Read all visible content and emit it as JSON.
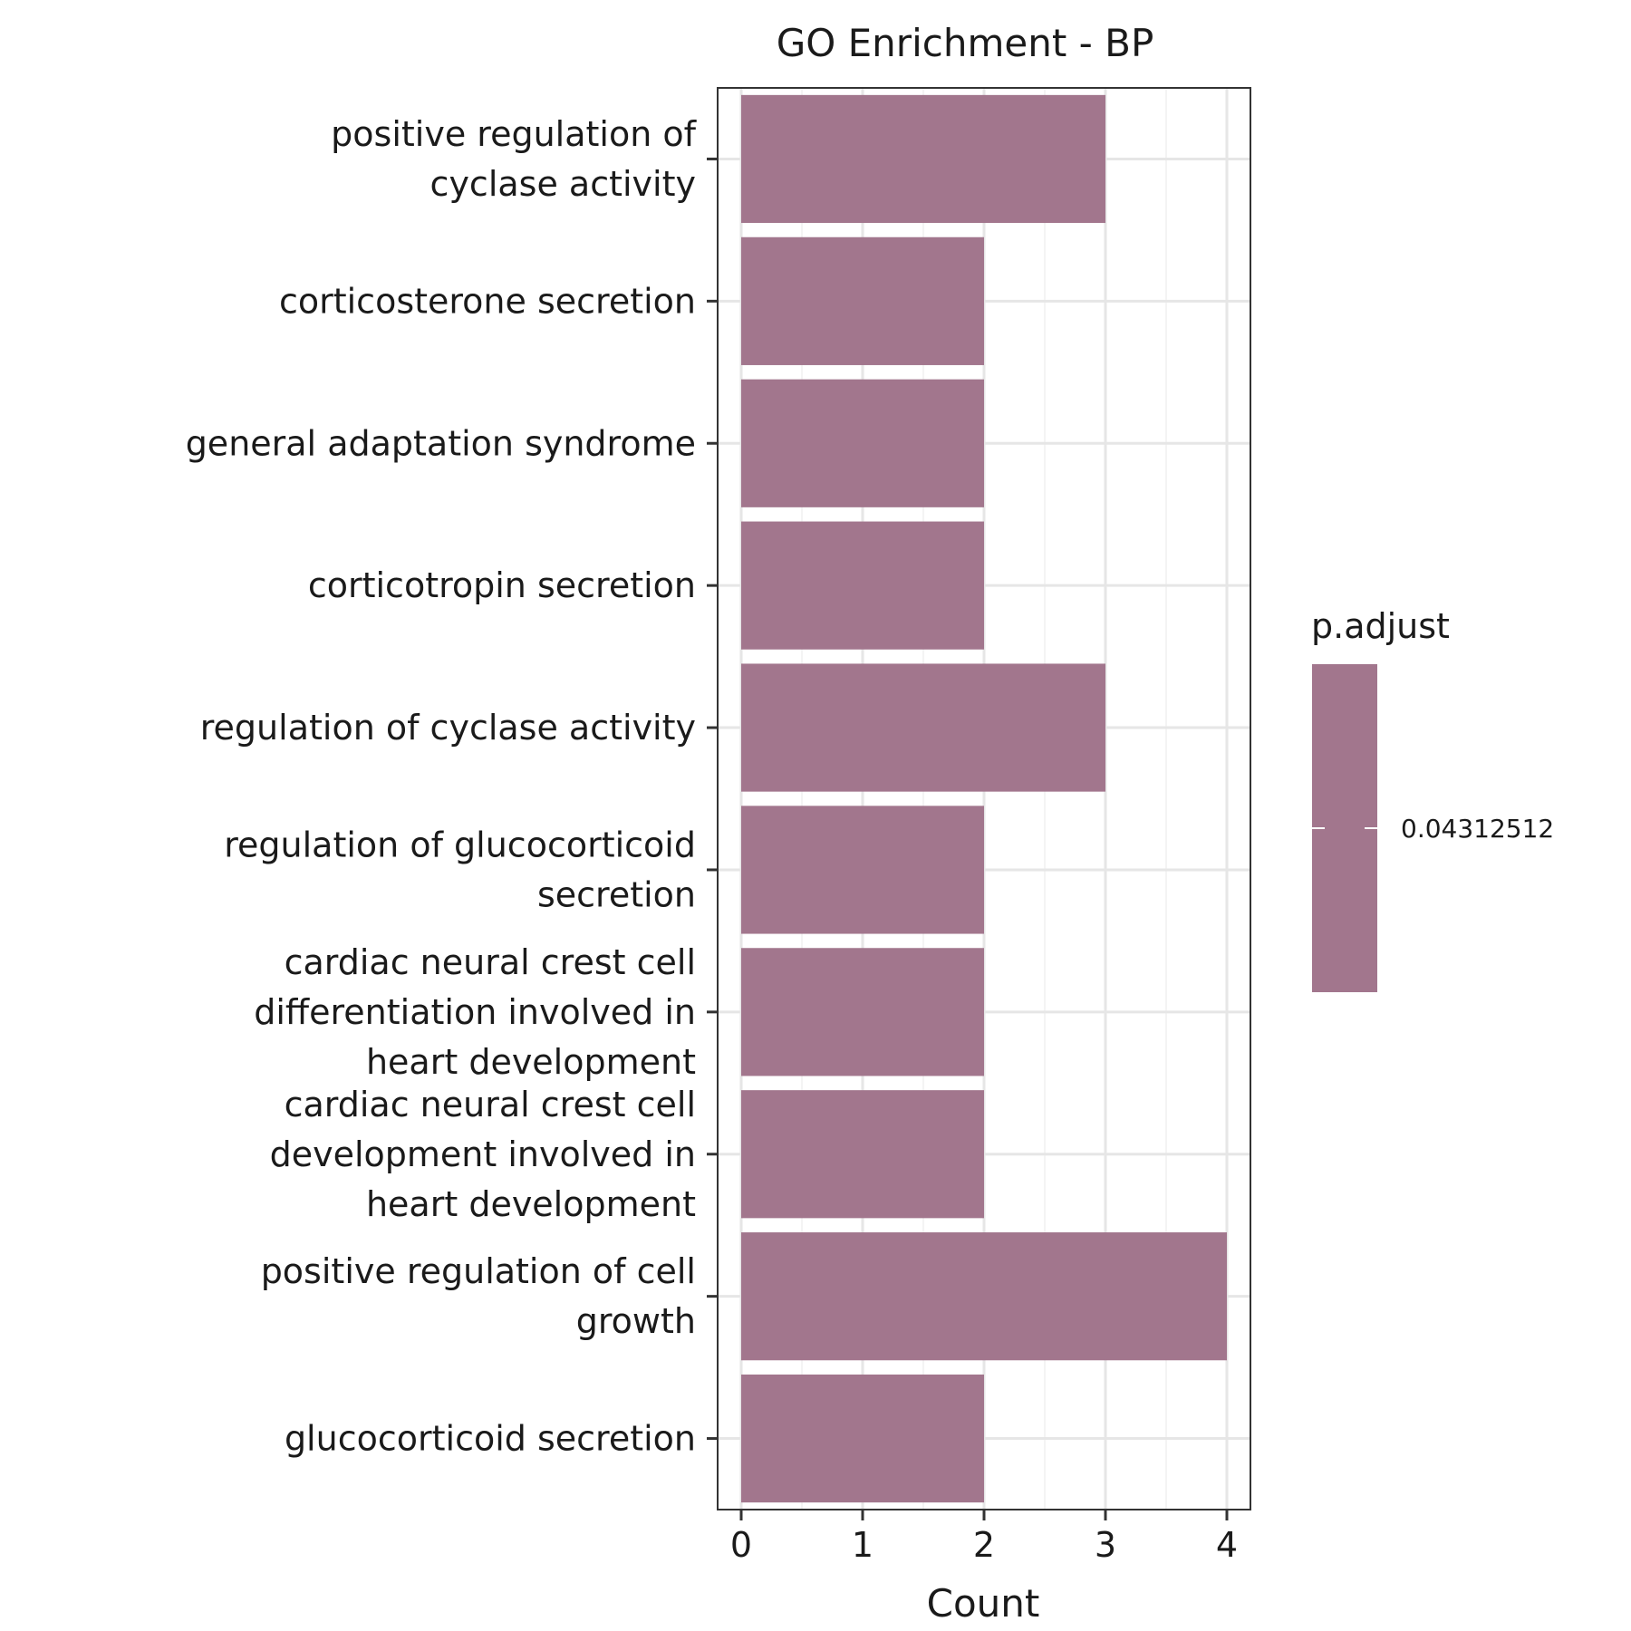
{
  "chart_data": {
    "type": "bar",
    "orientation": "horizontal",
    "title": "GO Enrichment - BP",
    "xlabel": "Count",
    "ylabel": "",
    "xlim": [
      0,
      4
    ],
    "x_ticks": [
      0,
      1,
      2,
      3,
      4
    ],
    "grid": true,
    "categories": [
      [
        "positive regulation of",
        "cyclase activity"
      ],
      [
        "corticosterone secretion"
      ],
      [
        "general adaptation syndrome"
      ],
      [
        "corticotropin secretion"
      ],
      [
        "regulation of cyclase activity"
      ],
      [
        "regulation of glucocorticoid",
        "secretion"
      ],
      [
        "cardiac neural crest cell",
        "differentiation involved in",
        "heart development"
      ],
      [
        "cardiac neural crest cell",
        "development involved in",
        "heart development"
      ],
      [
        "positive regulation of cell",
        "growth"
      ],
      [
        "glucocorticoid secretion"
      ]
    ],
    "values": [
      3,
      2,
      2,
      2,
      3,
      2,
      2,
      2,
      4,
      2
    ],
    "bar_color": "#a2768d",
    "legend": {
      "title": "p.adjust",
      "position": "right",
      "label": "0.04312512",
      "color": "#a2768d"
    }
  }
}
